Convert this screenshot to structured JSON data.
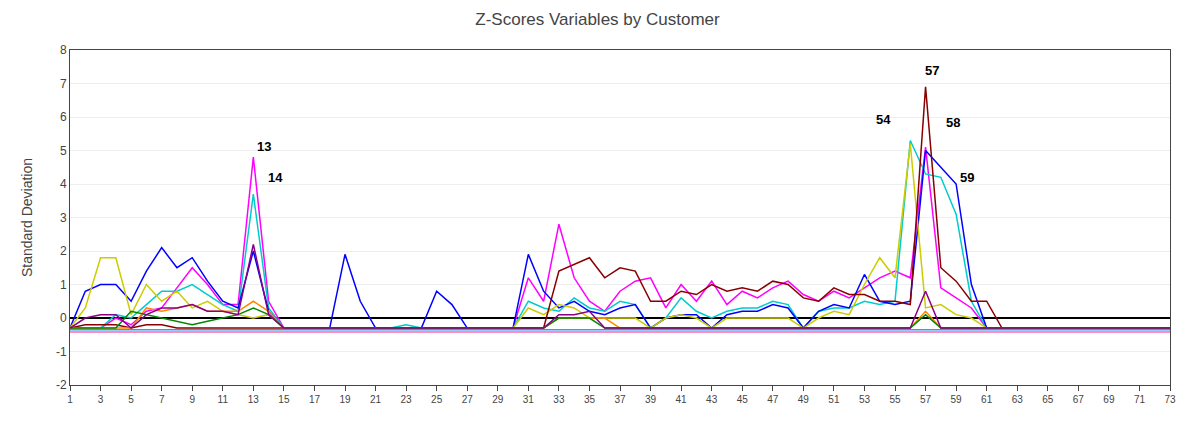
{
  "chart_data": {
    "type": "line",
    "title": "Z-Scores Variables by Customer",
    "y_label": "Standard Deviation",
    "x": [
      1,
      2,
      3,
      4,
      5,
      6,
      7,
      8,
      9,
      10,
      11,
      12,
      13,
      14,
      15,
      16,
      17,
      18,
      19,
      20,
      21,
      22,
      23,
      24,
      25,
      26,
      27,
      28,
      29,
      30,
      31,
      32,
      33,
      34,
      35,
      36,
      37,
      38,
      39,
      40,
      41,
      42,
      43,
      44,
      45,
      46,
      47,
      48,
      49,
      50,
      51,
      52,
      53,
      54,
      55,
      56,
      57,
      58,
      59,
      60,
      61,
      62,
      63,
      64,
      65,
      66,
      67,
      68,
      69,
      70,
      71,
      72,
      73
    ],
    "xlim": [
      1,
      73
    ],
    "xticks": [
      1,
      3,
      5,
      7,
      9,
      11,
      13,
      15,
      17,
      19,
      21,
      23,
      25,
      27,
      29,
      31,
      33,
      35,
      37,
      39,
      41,
      43,
      45,
      47,
      49,
      51,
      53,
      55,
      57,
      59,
      61,
      63,
      65,
      67,
      69,
      71,
      73
    ],
    "ylim": [
      -2,
      8
    ],
    "yticks": [
      -2,
      -1,
      0,
      1,
      2,
      3,
      4,
      5,
      6,
      7,
      8
    ],
    "grid": true,
    "annotations": [
      {
        "text": "13",
        "x": 13.1,
        "y": 4.85
      },
      {
        "text": "14",
        "x": 13.8,
        "y": 3.9
      },
      {
        "text": "54",
        "x": 53.6,
        "y": 5.65
      },
      {
        "text": "57",
        "x": 56.8,
        "y": 7.1
      },
      {
        "text": "58",
        "x": 58.2,
        "y": 5.55
      },
      {
        "text": "59",
        "x": 59.1,
        "y": 3.9
      }
    ],
    "series": [
      {
        "color": "#ff00ff",
        "values": [
          -0.3,
          -0.3,
          -0.3,
          0.0,
          -0.2,
          0.2,
          0.3,
          0.9,
          1.5,
          1.0,
          0.4,
          0.4,
          4.8,
          0.5,
          -0.3,
          -0.3,
          -0.3,
          -0.3,
          -0.3,
          -0.3,
          -0.3,
          -0.3,
          -0.3,
          -0.3,
          -0.3,
          -0.3,
          -0.3,
          -0.3,
          -0.3,
          -0.3,
          1.2,
          0.5,
          2.8,
          1.2,
          0.5,
          0.2,
          0.8,
          1.1,
          1.2,
          0.3,
          1.0,
          0.5,
          1.1,
          0.4,
          0.8,
          0.6,
          0.9,
          1.1,
          0.7,
          0.5,
          0.8,
          0.6,
          0.9,
          1.2,
          1.4,
          1.2,
          5.1,
          0.9,
          0.6,
          0.3,
          -0.3,
          -0.3,
          -0.3,
          -0.3,
          -0.3,
          -0.3,
          -0.3,
          -0.3,
          -0.3,
          -0.3,
          -0.3,
          -0.3,
          -0.3
        ]
      },
      {
        "color": "#00cccc",
        "values": [
          -0.3,
          -0.3,
          -0.3,
          0.1,
          0.0,
          0.4,
          0.8,
          0.8,
          1.0,
          0.7,
          0.4,
          0.2,
          3.7,
          0.3,
          -0.3,
          -0.3,
          -0.3,
          -0.3,
          -0.3,
          -0.3,
          -0.3,
          -0.3,
          -0.2,
          -0.3,
          -0.3,
          -0.3,
          -0.3,
          -0.3,
          -0.3,
          -0.3,
          0.5,
          0.3,
          0.2,
          0.6,
          0.3,
          0.2,
          0.5,
          0.4,
          -0.3,
          0.0,
          0.6,
          0.2,
          0.0,
          0.2,
          0.3,
          0.3,
          0.5,
          0.4,
          -0.3,
          0.2,
          0.3,
          0.3,
          0.5,
          0.4,
          0.5,
          5.3,
          4.3,
          4.2,
          3.1,
          0.5,
          -0.3,
          -0.3,
          -0.3,
          -0.3,
          -0.3,
          -0.3,
          -0.3,
          -0.3,
          -0.3,
          -0.3,
          -0.3,
          -0.3,
          -0.3
        ]
      },
      {
        "color": "#0000ff",
        "values": [
          -0.3,
          0.8,
          1.0,
          1.0,
          0.5,
          1.4,
          2.1,
          1.5,
          1.8,
          1.1,
          0.5,
          0.3,
          2.0,
          0.2,
          -0.3,
          -0.3,
          -0.3,
          -0.3,
          1.9,
          0.5,
          -0.3,
          -0.3,
          -0.3,
          -0.3,
          0.8,
          0.4,
          -0.3,
          -0.3,
          -0.3,
          -0.3,
          1.9,
          0.8,
          0.3,
          0.5,
          0.2,
          0.1,
          0.3,
          0.4,
          -0.3,
          0.0,
          0.1,
          0.1,
          -0.3,
          0.1,
          0.2,
          0.2,
          0.4,
          0.3,
          -0.3,
          0.2,
          0.4,
          0.3,
          1.3,
          0.5,
          0.4,
          0.5,
          5.0,
          4.5,
          4.0,
          1.0,
          -0.3,
          -0.3,
          -0.3,
          -0.3,
          -0.3,
          -0.3,
          -0.3,
          -0.3,
          -0.3,
          -0.3,
          -0.3,
          -0.3,
          -0.3
        ]
      },
      {
        "color": "#cccc00",
        "values": [
          -0.3,
          0.3,
          1.8,
          1.8,
          0.1,
          1.0,
          0.5,
          0.8,
          0.3,
          0.5,
          0.2,
          0.1,
          0.0,
          0.1,
          -0.3,
          -0.3,
          -0.3,
          -0.3,
          -0.3,
          -0.3,
          -0.3,
          -0.3,
          -0.3,
          -0.3,
          -0.3,
          -0.3,
          -0.3,
          -0.3,
          -0.3,
          -0.3,
          0.3,
          0.1,
          0.4,
          0.3,
          0.0,
          0.0,
          0.0,
          0.0,
          -0.3,
          0.0,
          0.1,
          0.0,
          -0.3,
          0.0,
          0.0,
          0.0,
          0.0,
          0.0,
          -0.3,
          0.0,
          0.2,
          0.1,
          1.0,
          1.8,
          1.2,
          5.2,
          0.3,
          0.4,
          0.1,
          0.0,
          -0.3,
          -0.3,
          -0.3,
          -0.3,
          -0.3,
          -0.3,
          -0.3,
          -0.3,
          -0.3,
          -0.3,
          -0.3,
          -0.3,
          -0.3
        ]
      },
      {
        "color": "#880000",
        "values": [
          -0.3,
          -0.2,
          -0.2,
          -0.2,
          -0.3,
          -0.2,
          -0.2,
          -0.3,
          -0.3,
          -0.3,
          -0.3,
          -0.3,
          -0.3,
          -0.3,
          -0.3,
          -0.3,
          -0.3,
          -0.3,
          -0.3,
          -0.3,
          -0.3,
          -0.3,
          -0.3,
          -0.3,
          -0.3,
          -0.3,
          -0.3,
          -0.3,
          -0.3,
          -0.3,
          -0.3,
          -0.3,
          1.4,
          1.6,
          1.8,
          1.2,
          1.5,
          1.4,
          0.5,
          0.5,
          0.8,
          0.7,
          1.0,
          0.8,
          0.9,
          0.8,
          1.1,
          1.0,
          0.6,
          0.5,
          0.9,
          0.7,
          0.7,
          0.5,
          0.5,
          0.4,
          6.9,
          1.5,
          1.1,
          0.5,
          0.5,
          -0.3,
          -0.3,
          -0.3,
          -0.3,
          -0.3,
          -0.3,
          -0.3,
          -0.3,
          -0.3,
          -0.3,
          -0.3,
          -0.3
        ]
      },
      {
        "color": "#ff8800",
        "values": [
          -0.3,
          -0.3,
          -0.3,
          -0.3,
          -0.3,
          0.3,
          0.2,
          0.3,
          0.4,
          0.2,
          0.2,
          0.2,
          0.5,
          0.2,
          -0.3,
          -0.3,
          -0.3,
          -0.3,
          -0.3,
          -0.3,
          -0.3,
          -0.3,
          -0.3,
          -0.3,
          -0.3,
          -0.3,
          -0.3,
          -0.3,
          -0.3,
          -0.3,
          -0.3,
          -0.3,
          0.0,
          0.0,
          0.0,
          0.0,
          -0.3,
          -0.3,
          -0.3,
          -0.3,
          -0.3,
          -0.3,
          -0.3,
          -0.3,
          -0.3,
          -0.3,
          -0.3,
          -0.3,
          -0.3,
          -0.3,
          -0.3,
          -0.3,
          -0.3,
          -0.3,
          -0.3,
          -0.3,
          0.2,
          -0.3,
          -0.3,
          -0.3,
          -0.3,
          -0.3,
          -0.3,
          -0.3,
          -0.3,
          -0.3,
          -0.3,
          -0.3,
          -0.3,
          -0.3,
          -0.3,
          -0.3,
          -0.3
        ]
      },
      {
        "color": "#008800",
        "values": [
          -0.3,
          -0.3,
          -0.3,
          -0.3,
          0.2,
          0.1,
          0.0,
          -0.1,
          -0.2,
          -0.1,
          0.0,
          0.1,
          0.3,
          0.1,
          -0.3,
          -0.3,
          -0.3,
          -0.3,
          -0.3,
          -0.3,
          -0.3,
          -0.3,
          -0.3,
          -0.3,
          -0.3,
          -0.3,
          -0.3,
          -0.3,
          -0.3,
          -0.3,
          -0.3,
          -0.3,
          0.0,
          0.0,
          0.0,
          -0.3,
          -0.3,
          -0.3,
          -0.3,
          -0.3,
          -0.3,
          -0.3,
          -0.3,
          -0.3,
          -0.3,
          -0.3,
          -0.3,
          -0.3,
          -0.3,
          -0.3,
          -0.3,
          -0.3,
          -0.3,
          -0.3,
          -0.3,
          -0.3,
          0.1,
          -0.3,
          -0.3,
          -0.3,
          -0.3,
          -0.3,
          -0.3,
          -0.3,
          -0.3,
          -0.3,
          -0.3,
          -0.3,
          -0.3,
          -0.3,
          -0.3,
          -0.3,
          -0.3
        ]
      },
      {
        "color": "#880088",
        "values": [
          -0.3,
          0.0,
          0.1,
          0.1,
          -0.3,
          0.1,
          0.3,
          0.3,
          0.4,
          0.2,
          0.2,
          0.1,
          2.2,
          0.1,
          -0.3,
          -0.3,
          -0.3,
          -0.3,
          -0.3,
          -0.3,
          -0.3,
          -0.3,
          -0.3,
          -0.3,
          -0.3,
          -0.3,
          -0.3,
          -0.3,
          -0.3,
          -0.3,
          -0.3,
          -0.3,
          0.1,
          0.1,
          0.2,
          -0.3,
          -0.3,
          -0.3,
          -0.3,
          -0.3,
          -0.3,
          -0.3,
          -0.3,
          -0.3,
          -0.3,
          -0.3,
          -0.3,
          -0.3,
          -0.3,
          -0.3,
          -0.3,
          -0.3,
          -0.3,
          -0.3,
          -0.3,
          -0.3,
          0.8,
          -0.3,
          -0.3,
          -0.3,
          -0.3,
          -0.3,
          -0.3,
          -0.3,
          -0.3,
          -0.3,
          -0.3,
          -0.3,
          -0.3,
          -0.3,
          -0.3,
          -0.3,
          -0.3
        ]
      },
      {
        "color": "#ff66aa",
        "values": [
          -0.42,
          -0.42,
          -0.42,
          -0.42,
          -0.42,
          -0.42,
          -0.42,
          -0.42,
          -0.42,
          -0.42,
          -0.42,
          -0.42,
          -0.42,
          -0.42,
          -0.42,
          -0.42,
          -0.42,
          -0.42,
          -0.42,
          -0.42,
          -0.42,
          -0.42,
          -0.42,
          -0.42,
          -0.42,
          -0.42,
          -0.42,
          -0.42,
          -0.42,
          -0.42,
          -0.42,
          -0.42,
          -0.42,
          -0.42,
          -0.42,
          -0.42,
          -0.42,
          -0.42,
          -0.42,
          -0.42,
          -0.42,
          -0.42,
          -0.42,
          -0.42,
          -0.42,
          -0.42,
          -0.42,
          -0.42,
          -0.42,
          -0.42,
          -0.42,
          -0.42,
          -0.42,
          -0.42,
          -0.42,
          -0.42,
          -0.42,
          -0.42,
          -0.42,
          -0.42,
          -0.42,
          -0.42,
          -0.42,
          -0.42,
          -0.42,
          -0.42,
          -0.42,
          -0.42,
          -0.42,
          -0.42,
          -0.42,
          -0.42,
          -0.42
        ]
      },
      {
        "color": "#3399ff",
        "values": [
          -0.35,
          -0.35,
          -0.35,
          -0.35,
          -0.35,
          -0.35,
          -0.35,
          -0.35,
          -0.35,
          -0.35,
          -0.35,
          -0.35,
          -0.35,
          -0.35,
          -0.35,
          -0.35,
          -0.35,
          -0.35,
          -0.35,
          -0.35,
          -0.35,
          -0.35,
          -0.35,
          -0.35,
          -0.35,
          -0.35,
          -0.35,
          -0.35,
          -0.35,
          -0.35,
          -0.35,
          -0.35,
          -0.35,
          -0.35,
          -0.35,
          -0.35,
          -0.35,
          -0.35,
          -0.35,
          -0.35,
          -0.35,
          -0.35,
          -0.35,
          -0.35,
          -0.35,
          -0.35,
          -0.35,
          -0.35,
          -0.35,
          -0.35,
          -0.35,
          -0.35,
          -0.35,
          -0.35,
          -0.35,
          -0.35,
          -0.35,
          -0.35,
          -0.35,
          -0.35,
          -0.35,
          -0.35,
          -0.35,
          -0.35,
          -0.35,
          -0.35,
          -0.35,
          -0.35,
          -0.35,
          -0.35,
          -0.35,
          -0.35,
          -0.35
        ]
      }
    ]
  }
}
